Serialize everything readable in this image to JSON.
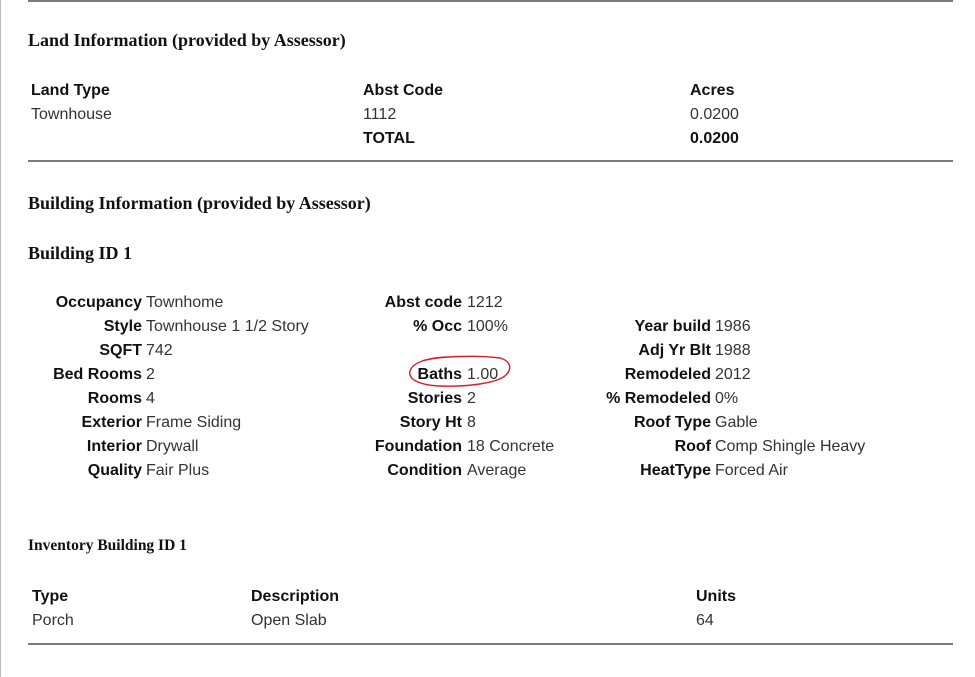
{
  "land": {
    "heading": "Land Information (provided by Assessor)",
    "headers": [
      "Land Type",
      "Abst Code",
      "Acres"
    ],
    "row": [
      "Townhouse",
      "1112",
      "0.0200"
    ],
    "total_label": "TOTAL",
    "total_value": "0.0200"
  },
  "building": {
    "heading": "Building Information (provided by Assessor)",
    "id_heading": "Building ID 1",
    "col1": [
      {
        "label": "Occupancy",
        "value": "Townhome"
      },
      {
        "label": "Style",
        "value": "Townhouse 1 1/2 Story"
      },
      {
        "label": "SQFT",
        "value": "742"
      },
      {
        "label": "Bed Rooms",
        "value": "2"
      },
      {
        "label": "Rooms",
        "value": "4"
      },
      {
        "label": "Exterior",
        "value": "Frame Siding"
      },
      {
        "label": "Interior",
        "value": "Drywall"
      },
      {
        "label": "Quality",
        "value": "Fair Plus"
      }
    ],
    "col2": [
      {
        "label": "Abst code",
        "value": "1212"
      },
      {
        "label": "% Occ",
        "value": "100%"
      },
      {
        "label": "Baths",
        "value": "1.00"
      },
      {
        "label": "Stories",
        "value": "2"
      },
      {
        "label": "Story Ht",
        "value": "8"
      },
      {
        "label": "Foundation",
        "value": "18 Concrete"
      },
      {
        "label": "Condition",
        "value": "Average"
      }
    ],
    "col3": [
      {
        "label": "Year build",
        "value": "1986"
      },
      {
        "label": "Adj Yr Blt",
        "value": "1988"
      },
      {
        "label": "Remodeled",
        "value": "2012"
      },
      {
        "label": "% Remodeled",
        "value": "0%"
      },
      {
        "label": "Roof Type",
        "value": "Gable"
      },
      {
        "label": "Roof",
        "value": "Comp Shingle Heavy"
      },
      {
        "label": "HeatType",
        "value": "Forced Air"
      }
    ]
  },
  "inventory": {
    "heading": "Inventory Building ID 1",
    "headers": [
      "Type",
      "Description",
      "Units"
    ],
    "row": [
      "Porch",
      "Open Slab",
      "64"
    ]
  },
  "annotation": {
    "circle_color": "#d0202a"
  }
}
